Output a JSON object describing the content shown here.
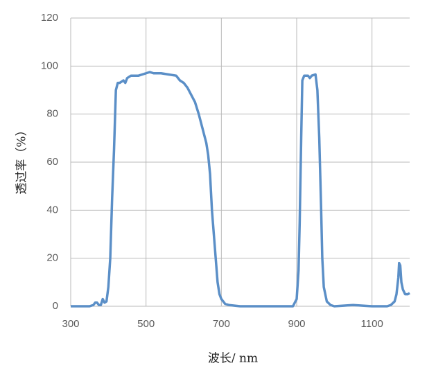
{
  "chart_data": {
    "type": "line",
    "x_label": "波长/ nm",
    "y_label": "透过率（%）",
    "x": [
      300,
      350,
      360,
      365,
      370,
      375,
      380,
      385,
      390,
      395,
      400,
      405,
      410,
      415,
      418,
      420,
      425,
      430,
      440,
      445,
      450,
      460,
      480,
      500,
      510,
      520,
      540,
      560,
      580,
      590,
      600,
      610,
      620,
      630,
      640,
      650,
      660,
      665,
      670,
      675,
      680,
      685,
      690,
      695,
      700,
      710,
      720,
      750,
      800,
      850,
      890,
      900,
      905,
      908,
      912,
      915,
      920,
      930,
      935,
      940,
      950,
      955,
      960,
      965,
      968,
      972,
      980,
      990,
      1000,
      1050,
      1100,
      1140,
      1150,
      1160,
      1165,
      1170,
      1172,
      1175,
      1178,
      1182,
      1188,
      1195,
      1200
    ],
    "values": [
      0,
      0,
      0.5,
      1.5,
      1.5,
      0.5,
      0.5,
      3,
      1.5,
      2,
      8,
      20,
      45,
      65,
      80,
      90,
      93,
      93,
      94,
      93,
      95,
      96,
      96,
      97,
      97.5,
      97,
      97,
      96.5,
      96,
      94,
      93,
      91,
      88,
      85,
      80,
      74,
      68,
      63,
      55,
      40,
      30,
      20,
      10,
      5,
      3,
      1,
      0.5,
      0,
      0,
      0,
      0,
      3,
      15,
      35,
      70,
      94,
      96,
      96,
      95,
      96,
      96.5,
      90,
      70,
      40,
      20,
      8,
      2,
      0.5,
      0,
      0.5,
      0,
      0,
      0.5,
      2,
      5,
      12,
      18,
      17,
      10,
      7,
      5,
      5,
      5.5
    ],
    "color": "#5b8fc7",
    "xlim": [
      300,
      1200
    ],
    "xticks": [
      300,
      500,
      700,
      900,
      1100
    ],
    "ylim": [
      0,
      120
    ],
    "yticks": [
      0,
      20,
      40,
      60,
      80,
      100,
      120
    ],
    "grid": true
  }
}
